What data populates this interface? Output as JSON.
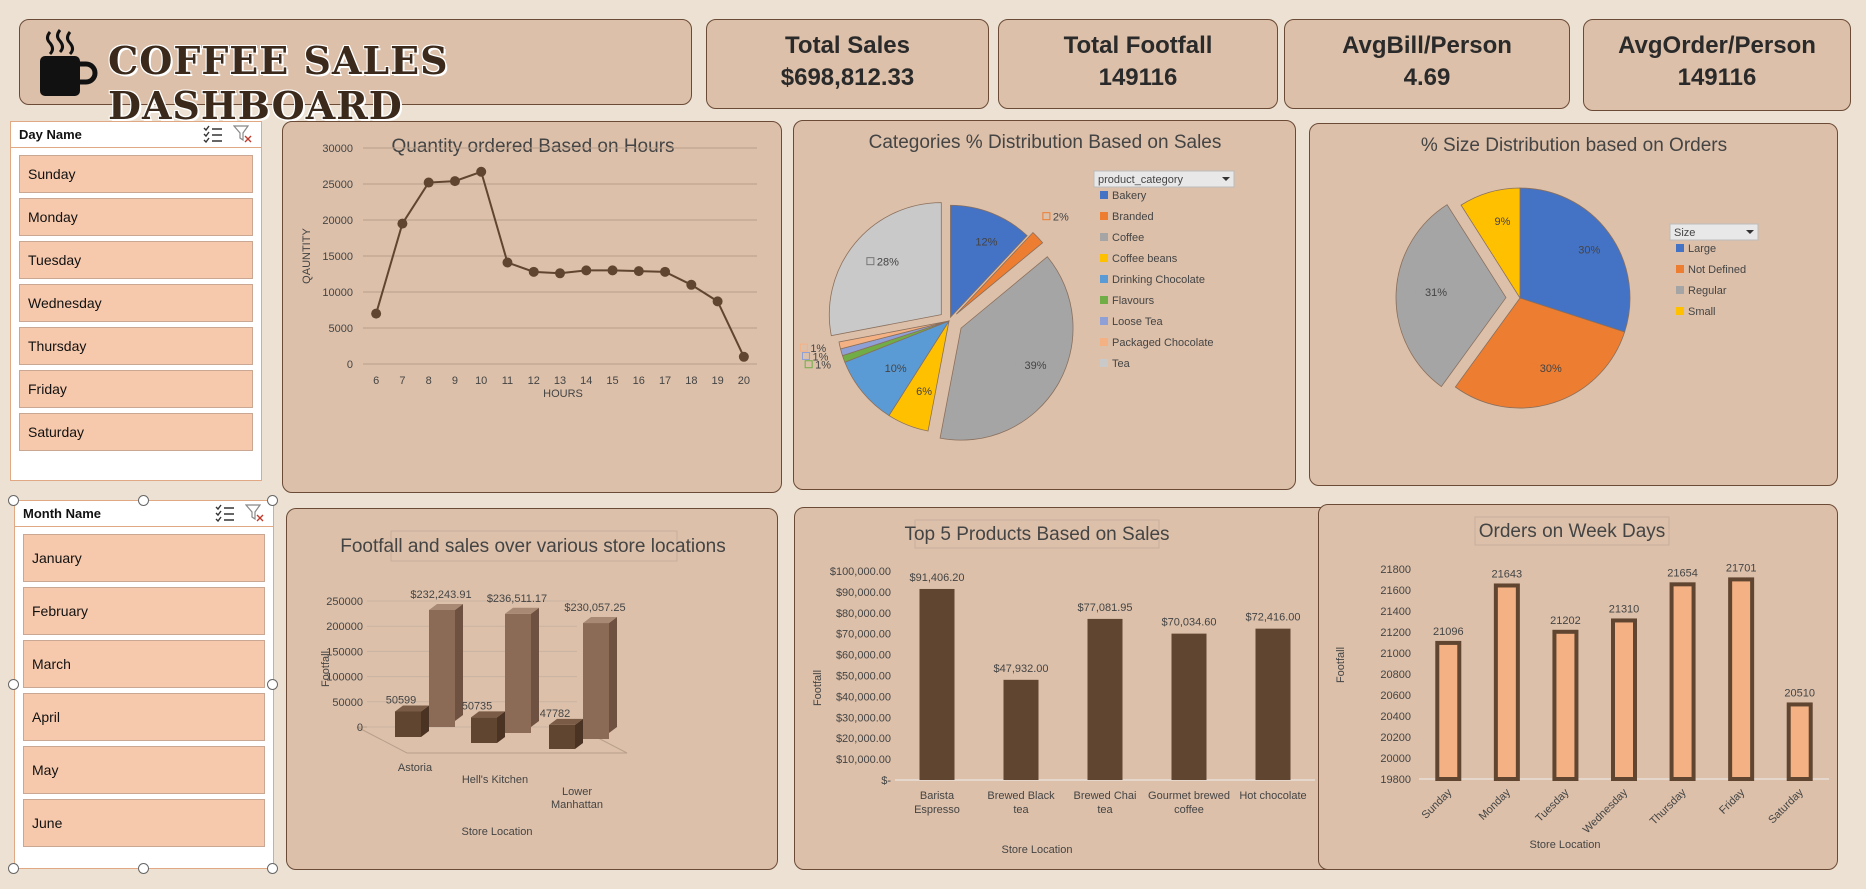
{
  "header": {
    "title": "COFFEE SALES DASHBOARD",
    "icon": "coffee-cup-icon"
  },
  "kpis": [
    {
      "title": "Total Sales",
      "value": "$698,812.33"
    },
    {
      "title": "Total Footfall",
      "value": "149116"
    },
    {
      "title": "AvgBill/Person",
      "value": "4.69"
    },
    {
      "title": "AvgOrder/Person",
      "value": "149116"
    }
  ],
  "slicers": {
    "day": {
      "title": "Day Name",
      "items": [
        "Sunday",
        "Monday",
        "Tuesday",
        "Wednesday",
        "Thursday",
        "Friday",
        "Saturday"
      ]
    },
    "month": {
      "title": "Month Name",
      "items": [
        "January",
        "February",
        "March",
        "April",
        "May",
        "June"
      ]
    }
  },
  "colors": {
    "brown_dark": "#604530",
    "brown_mid": "#8b6b56",
    "peach": "#f4b183",
    "blue": "#4472c4",
    "orange": "#ed7d31",
    "gray": "#a5a5a5",
    "gold": "#ffc000"
  },
  "chart_data": [
    {
      "id": "hours",
      "type": "line",
      "title": "Quantity ordered Based on Hours",
      "xlabel": "HOURS",
      "ylabel": "QAUNTITY",
      "x": [
        6,
        7,
        8,
        9,
        10,
        11,
        12,
        13,
        14,
        15,
        16,
        17,
        18,
        19,
        20
      ],
      "values": [
        7000,
        19500,
        25200,
        25400,
        26700,
        14100,
        12800,
        12600,
        13000,
        13000,
        12900,
        12800,
        11000,
        8700,
        1000
      ],
      "ylim": [
        0,
        30000
      ],
      "yticks": [
        0,
        5000,
        10000,
        15000,
        20000,
        25000,
        30000
      ],
      "grid": true
    },
    {
      "id": "categories",
      "type": "pie",
      "title": "Categories % Distribution Based on Sales",
      "legend_title": "product_category",
      "legend_position": "right",
      "slices": [
        {
          "label": "Bakery",
          "value": 12,
          "text": "12%",
          "color": "#4472c4"
        },
        {
          "label": "Branded",
          "value": 2,
          "text": "2%",
          "color": "#ed7d31"
        },
        {
          "label": "Coffee",
          "value": 39,
          "text": "39%",
          "color": "#a5a5a5"
        },
        {
          "label": "Coffee beans",
          "value": 6,
          "text": "6%",
          "color": "#ffc000"
        },
        {
          "label": "Drinking Chocolate",
          "value": 10,
          "text": "10%",
          "color": "#5b9bd5"
        },
        {
          "label": "Flavours",
          "value": 1,
          "text": "1%",
          "color": "#70ad47"
        },
        {
          "label": "Loose Tea",
          "value": 1,
          "text": "1%",
          "color": "#8fa0d6"
        },
        {
          "label": "Packaged Chocolate",
          "value": 1,
          "text": "1%",
          "color": "#f4b183"
        },
        {
          "label": "Tea",
          "value": 28,
          "text": "28%",
          "color": "#c9c9c9"
        }
      ]
    },
    {
      "id": "sizes",
      "type": "pie",
      "title": "% Size Distribution based on Orders",
      "legend_title": "Size",
      "legend_position": "right",
      "slices": [
        {
          "label": "Large",
          "value": 30,
          "text": "30%",
          "color": "#4472c4"
        },
        {
          "label": "Not Defined",
          "value": 30,
          "text": "30%",
          "color": "#ed7d31"
        },
        {
          "label": "Regular",
          "value": 31,
          "text": "31%",
          "color": "#a5a5a5"
        },
        {
          "label": "Small",
          "value": 9,
          "text": "9%",
          "color": "#ffc000"
        }
      ]
    },
    {
      "id": "stores",
      "type": "bar",
      "title": "Footfall and sales over various store locations",
      "xlabel": "Store Location",
      "ylabel": "Footfall",
      "categories": [
        "Astoria",
        "Hell's Kitchen",
        "Lower Manhattan"
      ],
      "series": [
        {
          "values": [
            50599,
            50735,
            47782
          ],
          "labels": [
            "50599",
            "50735",
            "47782"
          ]
        },
        {
          "values": [
            232243.91,
            236511.17,
            230057.25
          ],
          "labels": [
            "$232,243.91",
            "$236,511.17",
            "$230,057.25"
          ]
        }
      ],
      "ylim": [
        0,
        250000
      ],
      "yticks": [
        0,
        50000,
        100000,
        150000,
        200000,
        250000
      ]
    },
    {
      "id": "products",
      "type": "bar",
      "title": "Top 5 Products Based on Sales",
      "xlabel": "Store Location",
      "ylabel": "Footfall",
      "categories": [
        "Barista Espresso",
        "Brewed Black tea",
        "Brewed Chai tea",
        "Gourmet brewed coffee",
        "Hot chocolate"
      ],
      "values": [
        91406.2,
        47932.0,
        77081.95,
        70034.6,
        72416.0
      ],
      "labels": [
        "$91,406.20",
        "$47,932.00",
        "$77,081.95",
        "$70,034.60",
        "$72,416.00"
      ],
      "ylim": [
        0,
        100000
      ],
      "yticks": [
        "$-",
        "$10,000.00",
        "$20,000.00",
        "$30,000.00",
        "$40,000.00",
        "$50,000.00",
        "$60,000.00",
        "$70,000.00",
        "$80,000.00",
        "$90,000.00",
        "$100,000.00"
      ]
    },
    {
      "id": "weekdays",
      "type": "bar",
      "title": "Orders on Week Days",
      "xlabel": "Store Location",
      "ylabel": "Footfall",
      "categories": [
        "Sunday",
        "Monday",
        "Tuesday",
        "Wednesday",
        "Thursday",
        "Friday",
        "Saturday"
      ],
      "values": [
        21096,
        21643,
        21202,
        21310,
        21654,
        21701,
        20510
      ],
      "ylim": [
        19800,
        21800
      ],
      "yticks": [
        19800,
        20000,
        20200,
        20400,
        20600,
        20800,
        21000,
        21200,
        21400,
        21600,
        21800
      ]
    }
  ]
}
